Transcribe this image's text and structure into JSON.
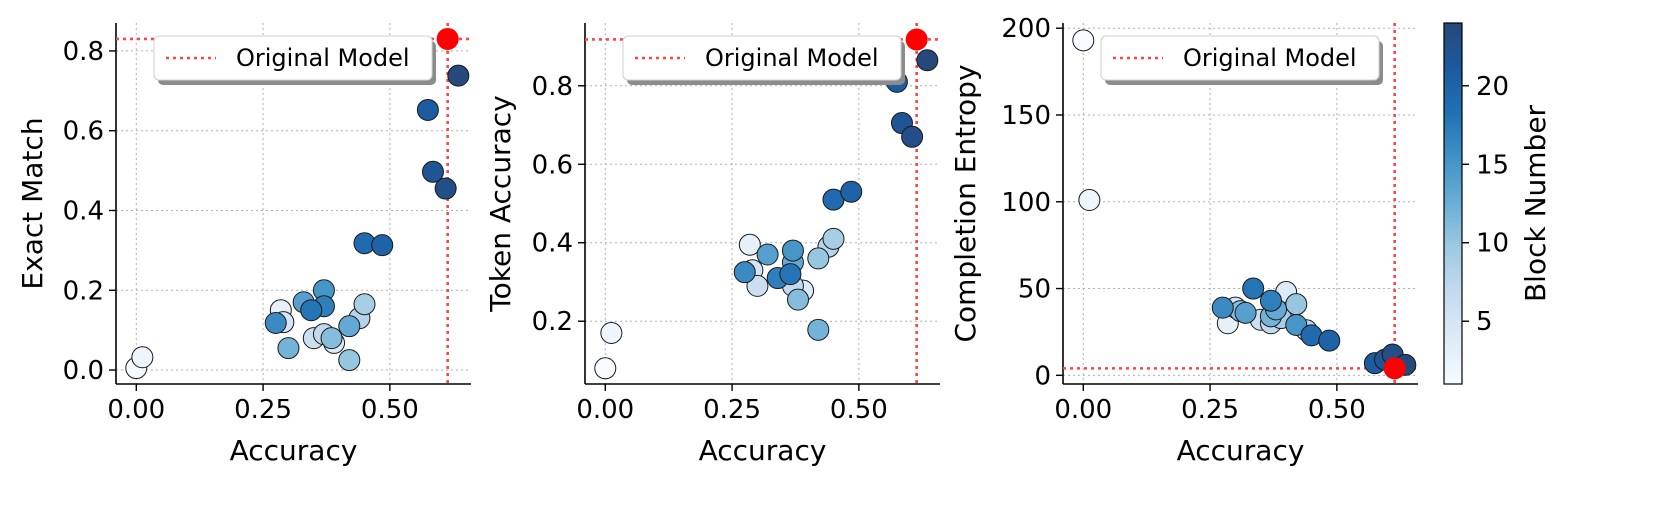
{
  "legend_label": "Original Model",
  "colorbar": {
    "label": "Block Number",
    "min": 1,
    "max": 24,
    "ticks": [
      5,
      10,
      15,
      20
    ]
  },
  "colors": {
    "reference": "#ff0000",
    "reference_line": "#ff4444",
    "cmap_low": "#f7fbff",
    "cmap_high": "#08306b",
    "grid": "#b0b0b0",
    "marker_edge": "#1a1a1a"
  },
  "chart_data": [
    {
      "type": "scatter",
      "title": "",
      "xlabel": "Accuracy",
      "ylabel": "Exact Match",
      "xlim": [
        -0.04,
        0.66
      ],
      "ylim": [
        -0.035,
        0.87
      ],
      "xticks": [
        0.0,
        0.25,
        0.5
      ],
      "xtick_labels": [
        "0.00",
        "0.25",
        "0.50"
      ],
      "yticks": [
        0.0,
        0.2,
        0.4,
        0.6,
        0.8
      ],
      "ytick_labels": [
        "0.0",
        "0.2",
        "0.4",
        "0.6",
        "0.8"
      ],
      "reference": {
        "x": 0.614,
        "y": 0.83
      },
      "points": [
        {
          "block": 1,
          "x": 0.0,
          "y": 0.005
        },
        {
          "block": 2,
          "x": 0.012,
          "y": 0.032
        },
        {
          "block": 3,
          "x": 0.285,
          "y": 0.15
        },
        {
          "block": 4,
          "x": 0.39,
          "y": 0.068
        },
        {
          "block": 5,
          "x": 0.29,
          "y": 0.12
        },
        {
          "block": 6,
          "x": 0.35,
          "y": 0.08
        },
        {
          "block": 7,
          "x": 0.37,
          "y": 0.09
        },
        {
          "block": 8,
          "x": 0.44,
          "y": 0.13
        },
        {
          "block": 9,
          "x": 0.45,
          "y": 0.165
        },
        {
          "block": 10,
          "x": 0.42,
          "y": 0.025
        },
        {
          "block": 11,
          "x": 0.385,
          "y": 0.08
        },
        {
          "block": 12,
          "x": 0.3,
          "y": 0.055
        },
        {
          "block": 13,
          "x": 0.42,
          "y": 0.11
        },
        {
          "block": 14,
          "x": 0.33,
          "y": 0.17
        },
        {
          "block": 15,
          "x": 0.37,
          "y": 0.2
        },
        {
          "block": 16,
          "x": 0.275,
          "y": 0.118
        },
        {
          "block": 17,
          "x": 0.37,
          "y": 0.16
        },
        {
          "block": 18,
          "x": 0.345,
          "y": 0.15
        },
        {
          "block": 19,
          "x": 0.45,
          "y": 0.318
        },
        {
          "block": 20,
          "x": 0.485,
          "y": 0.313
        },
        {
          "block": 21,
          "x": 0.575,
          "y": 0.652
        },
        {
          "block": 22,
          "x": 0.585,
          "y": 0.497
        },
        {
          "block": 23,
          "x": 0.61,
          "y": 0.455
        },
        {
          "block": 24,
          "x": 0.635,
          "y": 0.738
        }
      ]
    },
    {
      "type": "scatter",
      "title": "",
      "xlabel": "Accuracy",
      "ylabel": "Token Accuracy",
      "xlim": [
        -0.04,
        0.66
      ],
      "ylim": [
        0.04,
        0.96
      ],
      "xticks": [
        0.0,
        0.25,
        0.5
      ],
      "xtick_labels": [
        "0.00",
        "0.25",
        "0.50"
      ],
      "yticks": [
        0.2,
        0.4,
        0.6,
        0.8
      ],
      "ytick_labels": [
        "0.2",
        "0.4",
        "0.6",
        "0.8"
      ],
      "reference": {
        "x": 0.614,
        "y": 0.918
      },
      "points": [
        {
          "block": 1,
          "x": 0.0,
          "y": 0.08
        },
        {
          "block": 2,
          "x": 0.012,
          "y": 0.17
        },
        {
          "block": 3,
          "x": 0.285,
          "y": 0.395
        },
        {
          "block": 4,
          "x": 0.39,
          "y": 0.278
        },
        {
          "block": 5,
          "x": 0.29,
          "y": 0.33
        },
        {
          "block": 6,
          "x": 0.3,
          "y": 0.29
        },
        {
          "block": 7,
          "x": 0.37,
          "y": 0.29
        },
        {
          "block": 8,
          "x": 0.44,
          "y": 0.39
        },
        {
          "block": 9,
          "x": 0.45,
          "y": 0.41
        },
        {
          "block": 10,
          "x": 0.42,
          "y": 0.36
        },
        {
          "block": 11,
          "x": 0.38,
          "y": 0.255
        },
        {
          "block": 12,
          "x": 0.42,
          "y": 0.178
        },
        {
          "block": 13,
          "x": 0.37,
          "y": 0.35
        },
        {
          "block": 14,
          "x": 0.32,
          "y": 0.37
        },
        {
          "block": 15,
          "x": 0.37,
          "y": 0.38
        },
        {
          "block": 16,
          "x": 0.275,
          "y": 0.325
        },
        {
          "block": 17,
          "x": 0.34,
          "y": 0.31
        },
        {
          "block": 18,
          "x": 0.365,
          "y": 0.32
        },
        {
          "block": 19,
          "x": 0.45,
          "y": 0.51
        },
        {
          "block": 20,
          "x": 0.485,
          "y": 0.53
        },
        {
          "block": 21,
          "x": 0.575,
          "y": 0.81
        },
        {
          "block": 22,
          "x": 0.585,
          "y": 0.705
        },
        {
          "block": 23,
          "x": 0.605,
          "y": 0.67
        },
        {
          "block": 24,
          "x": 0.635,
          "y": 0.865
        }
      ]
    },
    {
      "type": "scatter",
      "title": "",
      "xlabel": "Accuracy",
      "ylabel": "Completion Entropy",
      "xlim": [
        -0.04,
        0.66
      ],
      "ylim": [
        -5,
        203
      ],
      "xticks": [
        0.0,
        0.25,
        0.5
      ],
      "xtick_labels": [
        "0.00",
        "0.25",
        "0.50"
      ],
      "yticks": [
        0,
        50,
        100,
        150,
        200
      ],
      "ytick_labels": [
        "0",
        "50",
        "100",
        "150",
        "200"
      ],
      "reference": {
        "x": 0.614,
        "y": 4
      },
      "points": [
        {
          "block": 1,
          "x": 0.0,
          "y": 193
        },
        {
          "block": 2,
          "x": 0.012,
          "y": 101
        },
        {
          "block": 3,
          "x": 0.285,
          "y": 30
        },
        {
          "block": 4,
          "x": 0.4,
          "y": 48
        },
        {
          "block": 5,
          "x": 0.3,
          "y": 39
        },
        {
          "block": 6,
          "x": 0.35,
          "y": 32
        },
        {
          "block": 7,
          "x": 0.37,
          "y": 30
        },
        {
          "block": 8,
          "x": 0.44,
          "y": 26
        },
        {
          "block": 9,
          "x": 0.39,
          "y": 33
        },
        {
          "block": 10,
          "x": 0.42,
          "y": 41
        },
        {
          "block": 11,
          "x": 0.31,
          "y": 37
        },
        {
          "block": 12,
          "x": 0.37,
          "y": 34
        },
        {
          "block": 13,
          "x": 0.38,
          "y": 38
        },
        {
          "block": 14,
          "x": 0.32,
          "y": 36
        },
        {
          "block": 15,
          "x": 0.42,
          "y": 29
        },
        {
          "block": 16,
          "x": 0.275,
          "y": 39
        },
        {
          "block": 17,
          "x": 0.37,
          "y": 43
        },
        {
          "block": 18,
          "x": 0.335,
          "y": 50
        },
        {
          "block": 19,
          "x": 0.45,
          "y": 23
        },
        {
          "block": 20,
          "x": 0.485,
          "y": 20
        },
        {
          "block": 21,
          "x": 0.575,
          "y": 7
        },
        {
          "block": 22,
          "x": 0.595,
          "y": 9
        },
        {
          "block": 23,
          "x": 0.61,
          "y": 12
        },
        {
          "block": 24,
          "x": 0.635,
          "y": 6
        }
      ]
    }
  ]
}
